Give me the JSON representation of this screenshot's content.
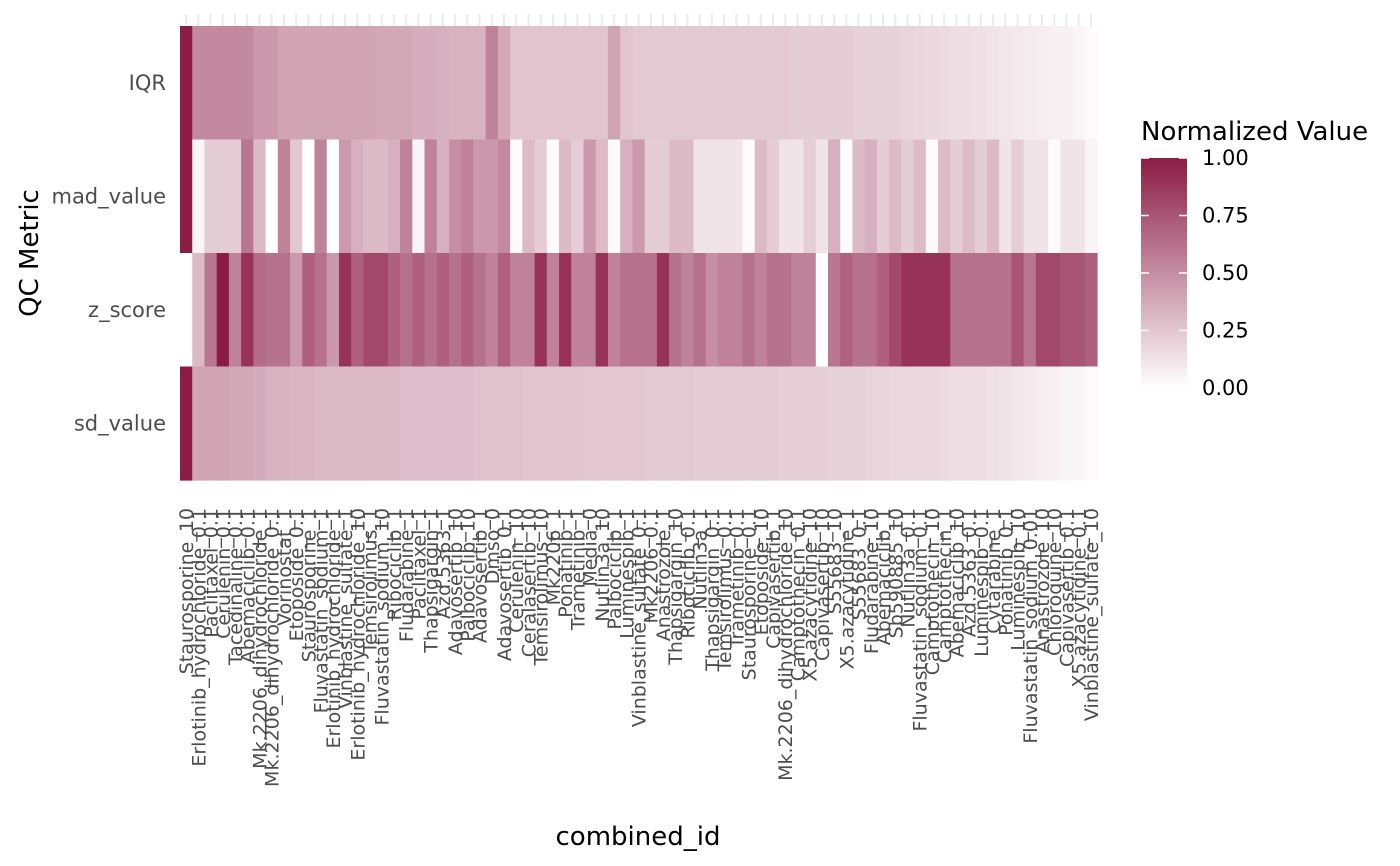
{
  "chart_data": {
    "type": "heatmap",
    "xlabel": "combined_id",
    "ylabel": "QC Metric",
    "rows": [
      "IQR",
      "mad_value",
      "z_score",
      "sd_value"
    ],
    "colors": {
      "low": "#ffffff",
      "high": "#8b1c44",
      "text": "#4d4d4d"
    },
    "legend": {
      "title": "Normalized Value",
      "position": "right",
      "breaks": [
        1.0,
        0.75,
        0.5,
        0.25,
        0.0
      ],
      "labels": [
        "1.00",
        "0.75",
        "0.50",
        "0.25",
        "0.00"
      ]
    },
    "categories": [
      "Staurosporine_10",
      "Erlotinib_hydrochloride_0.1",
      "Paclitaxel_0.1",
      "Cerulenin_0.1",
      "Tacedinaline_0.1",
      "Abemaciclib_0.1",
      "Mk.2206_dihydrochloride_1",
      "Mk.2206_dihydrochloride_0.1",
      "Vorinostat_1",
      "Etoposide_0.1",
      "Staurosporine_1",
      "Fluvastatin_sodium_1",
      "Erlotinib_hydrochloride_1",
      "Vinblastine_sulfate_1",
      "Erlotinib_hydrochloride_10",
      "Temsirolimus_1",
      "Fluvastatin_sodium_10",
      "Ribociclib_1",
      "Fludarabine_1",
      "Paclitaxel_1",
      "Thapsigargin_1",
      "Azd.5363_1",
      "Adavosertib_10",
      "Palbociclib_10",
      "Adavosertib_1",
      "Dmso_0",
      "Adavosertib_0.1",
      "Cerulenin_10",
      "Ceralasertib_10",
      "Temsirolimus_10",
      "Mk2206_1",
      "Ponatinib_1",
      "Trametinib_1",
      "Media_0",
      "Nutlin3a_10",
      "Palbociclib_1",
      "Luminespib_1",
      "Vinblastine_sulfate_0.1",
      "Mk2206_0.1",
      "Anastrozole_1",
      "Thapsigargin_10",
      "Ribociclib_0.1",
      "Nutlin3a_1",
      "Thapsigargin_0.1",
      "Temsirolimus_0.1",
      "Trametinib_0.1",
      "Staurosporine_0.1",
      "Etoposide_10",
      "Capivasertib_1",
      "Mk.2206_dihydrochloride_10",
      "Camptothecin_0.1",
      "X5.azacytidine_10",
      "Capivasertib_10",
      "S55683_10",
      "X5.azacytidine_1",
      "S55683_0.1",
      "Fludarabine_10",
      "Abemaciclib_1",
      "Sb590885_10",
      "Nutlin3a_0.1",
      "Fluvastatin_sodium_0.1",
      "Camptothecin_10",
      "Camptothecin_1",
      "Abemaciclib_10",
      "Azd.5363_0.1",
      "Luminespib_0.1",
      "Cytarabine_1",
      "Ponatinib_0.1",
      "Luminespib_10",
      "Fluvastatin_sodium_0.01",
      "Anastrozole_10",
      "Chloroquine_10",
      "Capivasertib_0.1",
      "X5.azacytidine_0.1",
      "Vinblastine_sulfate_10"
    ],
    "values": {
      "IQR": [
        1.0,
        0.52,
        0.52,
        0.52,
        0.52,
        0.52,
        0.45,
        0.45,
        0.4,
        0.4,
        0.4,
        0.4,
        0.4,
        0.4,
        0.4,
        0.4,
        0.38,
        0.38,
        0.38,
        0.36,
        0.36,
        0.35,
        0.34,
        0.34,
        0.34,
        0.55,
        0.38,
        0.26,
        0.26,
        0.26,
        0.26,
        0.26,
        0.26,
        0.26,
        0.26,
        0.4,
        0.26,
        0.24,
        0.24,
        0.24,
        0.24,
        0.24,
        0.24,
        0.24,
        0.24,
        0.24,
        0.24,
        0.24,
        0.24,
        0.24,
        0.22,
        0.22,
        0.22,
        0.22,
        0.22,
        0.2,
        0.2,
        0.2,
        0.2,
        0.19,
        0.18,
        0.17,
        0.16,
        0.15,
        0.14,
        0.13,
        0.12,
        0.11,
        0.1,
        0.09,
        0.08,
        0.07,
        0.06,
        0.04,
        0.02
      ],
      "mad_value": [
        1.0,
        0.05,
        0.22,
        0.22,
        0.22,
        0.6,
        0.3,
        0.0,
        0.55,
        0.25,
        0.0,
        0.55,
        0.0,
        0.45,
        0.35,
        0.3,
        0.3,
        0.35,
        0.55,
        0.05,
        0.55,
        0.35,
        0.5,
        0.55,
        0.45,
        0.45,
        0.52,
        0.02,
        0.3,
        0.22,
        0.02,
        0.3,
        0.22,
        0.45,
        0.3,
        0.02,
        0.35,
        0.45,
        0.22,
        0.22,
        0.3,
        0.3,
        0.12,
        0.12,
        0.12,
        0.12,
        0.02,
        0.3,
        0.22,
        0.12,
        0.12,
        0.22,
        0.12,
        0.35,
        0.02,
        0.3,
        0.35,
        0.22,
        0.3,
        0.22,
        0.3,
        0.02,
        0.3,
        0.22,
        0.3,
        0.22,
        0.3,
        0.12,
        0.22,
        0.12,
        0.12,
        0.02,
        0.12,
        0.12,
        0.05
      ],
      "z_score": [
        0.0,
        0.3,
        0.6,
        1.0,
        0.55,
        0.9,
        0.65,
        0.62,
        0.62,
        0.45,
        0.7,
        0.62,
        0.45,
        0.9,
        0.7,
        0.8,
        0.8,
        0.7,
        0.62,
        0.7,
        0.62,
        0.7,
        0.62,
        0.7,
        0.62,
        0.55,
        0.7,
        0.55,
        0.55,
        0.9,
        0.55,
        0.9,
        0.55,
        0.55,
        0.9,
        0.55,
        0.62,
        0.62,
        0.62,
        0.9,
        0.62,
        0.55,
        0.62,
        0.5,
        0.55,
        0.55,
        0.62,
        0.55,
        0.62,
        0.62,
        0.55,
        0.55,
        0.0,
        0.6,
        0.7,
        0.62,
        0.62,
        0.7,
        0.8,
        0.9,
        0.9,
        0.9,
        0.9,
        0.62,
        0.62,
        0.62,
        0.62,
        0.62,
        0.75,
        0.6,
        0.8,
        0.8,
        0.75,
        0.75,
        0.7
      ],
      "sd_value": [
        1.0,
        0.4,
        0.4,
        0.4,
        0.38,
        0.38,
        0.37,
        0.34,
        0.34,
        0.32,
        0.32,
        0.31,
        0.31,
        0.3,
        0.3,
        0.3,
        0.3,
        0.3,
        0.28,
        0.28,
        0.28,
        0.28,
        0.28,
        0.28,
        0.27,
        0.27,
        0.27,
        0.27,
        0.26,
        0.26,
        0.26,
        0.26,
        0.26,
        0.25,
        0.25,
        0.25,
        0.25,
        0.25,
        0.24,
        0.24,
        0.24,
        0.24,
        0.23,
        0.23,
        0.23,
        0.23,
        0.22,
        0.22,
        0.22,
        0.21,
        0.21,
        0.21,
        0.21,
        0.2,
        0.2,
        0.2,
        0.19,
        0.19,
        0.18,
        0.18,
        0.17,
        0.17,
        0.16,
        0.15,
        0.15,
        0.14,
        0.13,
        0.12,
        0.11,
        0.1,
        0.08,
        0.07,
        0.05,
        0.04,
        0.02
      ]
    }
  }
}
